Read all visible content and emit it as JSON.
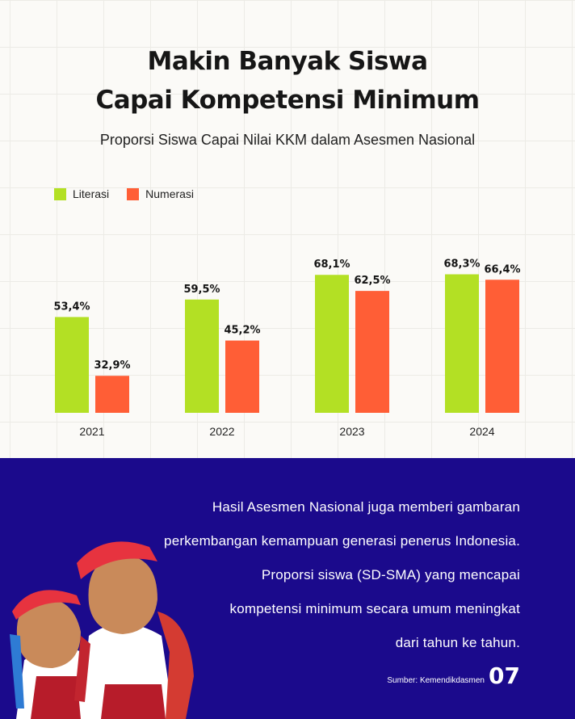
{
  "title_line1": "Makin Banyak Siswa",
  "title_line2": "Capai Kompetensi Minimum",
  "subtitle": "Proporsi Siswa Capai Nilai KKM dalam Asesmen Nasional",
  "colors": {
    "literasi": "#b3e024",
    "numerasi": "#ff5e36",
    "background": "#fbfaf7",
    "panel": "#1b0a8c"
  },
  "chart_data": {
    "type": "bar",
    "title": "Proporsi Siswa Capai Nilai KKM dalam Asesmen Nasional",
    "categories": [
      "2021",
      "2022",
      "2023",
      "2024"
    ],
    "series": [
      {
        "name": "Literasi",
        "values": [
          53.4,
          59.5,
          68.1,
          68.3
        ],
        "labels": [
          "53,4%",
          "59,5%",
          "68,1%",
          "68,3%"
        ]
      },
      {
        "name": "Numerasi",
        "values": [
          32.9,
          45.2,
          62.5,
          66.4
        ],
        "labels": [
          "32,9%",
          "45,2%",
          "62,5%",
          "66,4%"
        ]
      }
    ],
    "xlabel": "",
    "ylabel": "",
    "ylim": [
      20,
      100
    ],
    "grid": true,
    "legend": "top-left"
  },
  "description_lines": [
    "Hasil Asesmen Nasional juga memberi gambaran",
    "perkembangan kemampuan generasi penerus Indonesia.",
    "Proporsi siswa (SD-SMA) yang mencapai",
    "kompetensi minimum secara umum meningkat",
    "dari tahun ke tahun."
  ],
  "source": "Sumber: Kemendikdasmen",
  "page_number": "07"
}
